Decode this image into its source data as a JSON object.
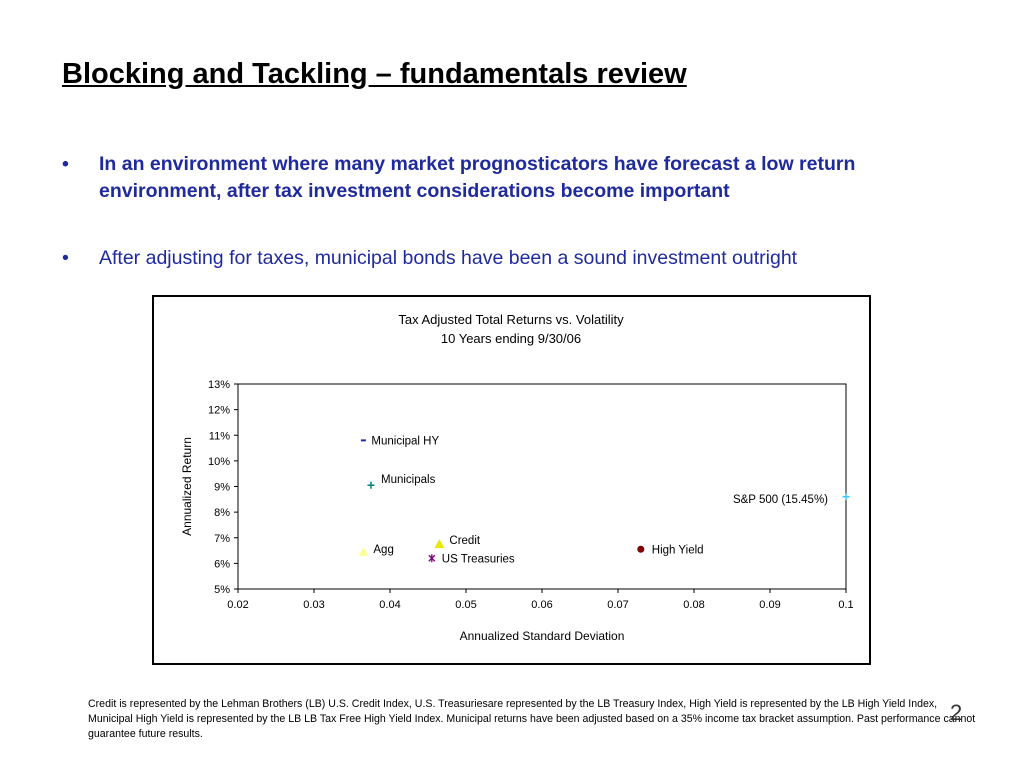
{
  "slide": {
    "title": "Blocking and Tackling – fundamentals review",
    "bullets": [
      {
        "marker": "•",
        "text": "In an environment where many market prognosticators have forecast a low return environment, after tax investment considerations become important"
      },
      {
        "marker": "•",
        "text": "After adjusting for taxes, municipal bonds have been a sound investment outright"
      }
    ],
    "footnote": "Credit is represented by the Lehman Brothers (LB) U.S. Credit Index, U.S. Treasuriesare represented by the LB Treasury Index, High Yield is represented by the LB High Yield Index, Municipal High Yield is represented by the LB LB Tax Free High Yield Index.  Municipal returns have been adjusted based on a 35% income tax bracket assumption.  Past performance cannot guarantee future results.",
    "page_number": "2"
  },
  "chart_data": {
    "type": "scatter",
    "title": "Tax Adjusted Total Returns vs. Volatility",
    "subtitle": "10 Years ending 9/30/06",
    "xlabel": "Annualized Standard Deviation",
    "ylabel": "Annualized Return",
    "xlim": [
      0.02,
      0.1
    ],
    "ylim": [
      5,
      13
    ],
    "x_ticks": [
      "0.02",
      "0.03",
      "0.04",
      "0.05",
      "0.06",
      "0.07",
      "0.08",
      "0.09",
      "0.1"
    ],
    "y_ticks": [
      "5%",
      "6%",
      "7%",
      "8%",
      "9%",
      "10%",
      "11%",
      "12%",
      "13%"
    ],
    "grid": false,
    "points": [
      {
        "label": "Municipal HY",
        "x": 0.0365,
        "y": 10.8,
        "marker": "dash",
        "color": "#1f2a9c"
      },
      {
        "label": "Municipals",
        "x": 0.0375,
        "y": 9.05,
        "marker": "plus",
        "color": "#008080"
      },
      {
        "label": "S&P 500 (15.45%)",
        "x": 0.1,
        "y": 8.6,
        "marker": "plus",
        "color": "#33ccff"
      },
      {
        "label": "Credit",
        "x": 0.0465,
        "y": 6.75,
        "marker": "triangle",
        "color": "#e8e800"
      },
      {
        "label": "Agg",
        "x": 0.0365,
        "y": 6.45,
        "marker": "triangle",
        "color": "#ffff99"
      },
      {
        "label": "US Treasuries",
        "x": 0.0455,
        "y": 6.2,
        "marker": "star",
        "color": "#800080"
      },
      {
        "label": "High Yield",
        "x": 0.073,
        "y": 6.55,
        "marker": "circle",
        "color": "#800000"
      }
    ]
  }
}
